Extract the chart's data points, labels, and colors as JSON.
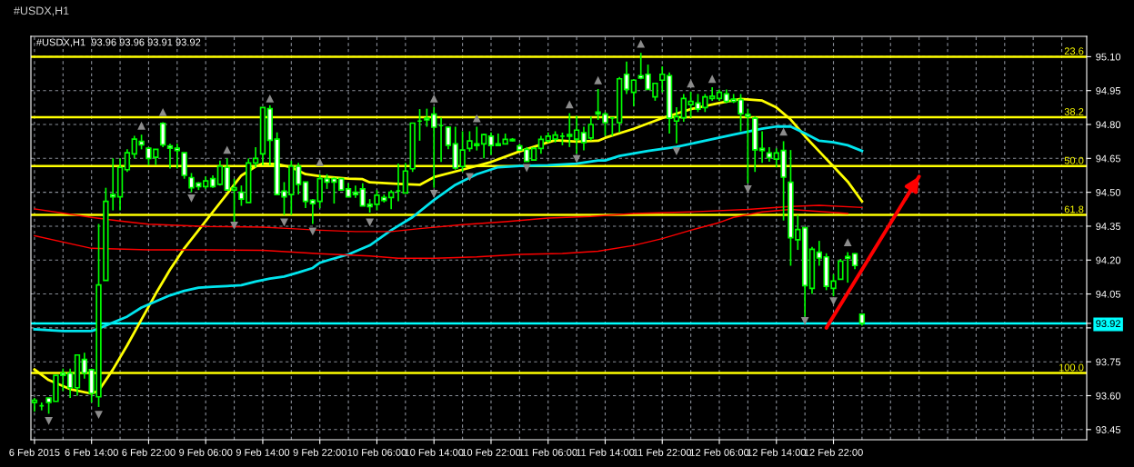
{
  "chart_data": {
    "type": "candlestick",
    "title": "#USDX,H1",
    "subtitle": "#USDX,H1  93.96 93.96 93.91 93.92",
    "categories": [
      "6 Feb 2015",
      null,
      null,
      null,
      null,
      null,
      null,
      null,
      "6 Feb 14:00",
      null,
      null,
      null,
      null,
      null,
      null,
      null,
      "6 Feb 22:00",
      null,
      null,
      null,
      null,
      null,
      null,
      null,
      "9 Feb 06:00",
      null,
      null,
      null,
      null,
      null,
      null,
      null,
      "9 Feb 14:00",
      null,
      null,
      null,
      null,
      null,
      null,
      null,
      "9 Feb 22:00",
      null,
      null,
      null,
      null,
      null,
      null,
      null,
      "10 Feb 06:00",
      null,
      null,
      null,
      null,
      null,
      null,
      null,
      "10 Feb 14:00",
      null,
      null,
      null,
      null,
      null,
      null,
      null,
      "10 Feb 22:00",
      null,
      null,
      null,
      null,
      null,
      null,
      null,
      "11 Feb 06:00",
      null,
      null,
      null,
      null,
      null,
      null,
      null,
      "11 Feb 14:00",
      null,
      null,
      null,
      null,
      null,
      null,
      null,
      "11 Feb 22:00",
      null,
      null,
      null,
      null,
      null,
      null,
      null,
      "12 Feb 06:00",
      null,
      null,
      null,
      null,
      null,
      null,
      null,
      "12 Feb 14:00",
      null,
      null,
      null,
      null,
      null,
      null,
      null,
      "12 Feb 22:00",
      null,
      null,
      null,
      null,
      null,
      null,
      null,
      null,
      null,
      null,
      null,
      null,
      null,
      null,
      null,
      null,
      null,
      null,
      null,
      null,
      null,
      null,
      null,
      null,
      null,
      null,
      null,
      null,
      null,
      null,
      null,
      null,
      null,
      null,
      null
    ],
    "color": "#00ff00",
    "ohlc": [
      [
        93.57,
        93.59,
        93.53,
        93.58
      ],
      [
        93.555,
        93.57,
        93.535,
        93.555
      ],
      [
        93.59,
        93.59,
        93.52,
        93.57
      ],
      [
        93.575,
        93.69,
        93.575,
        93.69
      ],
      [
        93.7,
        93.72,
        93.62,
        93.69
      ],
      [
        93.7,
        93.72,
        93.59,
        93.635
      ],
      [
        93.635,
        93.78,
        93.6,
        93.78
      ],
      [
        93.76,
        93.79,
        93.675,
        93.7
      ],
      [
        93.715,
        93.72,
        93.57,
        93.61
      ],
      [
        93.595,
        94.36,
        93.55,
        94.09
      ],
      [
        94.11,
        94.52,
        94.11,
        94.46
      ],
      [
        94.49,
        94.65,
        94.42,
        94.48
      ],
      [
        94.48,
        94.65,
        94.42,
        94.61
      ],
      [
        94.6,
        94.69,
        94.59,
        94.675
      ],
      [
        94.67,
        94.75,
        94.65,
        94.735
      ],
      [
        94.725,
        94.755,
        94.69,
        94.71
      ],
      [
        94.695,
        94.7,
        94.62,
        94.65
      ],
      [
        94.655,
        94.69,
        94.62,
        94.69
      ],
      [
        94.805,
        94.81,
        94.7,
        94.71
      ],
      [
        94.705,
        94.715,
        94.605,
        94.695
      ],
      [
        94.695,
        94.715,
        94.605,
        94.685
      ],
      [
        94.675,
        94.675,
        94.56,
        94.575
      ],
      [
        94.565,
        94.585,
        94.5,
        94.52
      ],
      [
        94.54,
        94.545,
        94.51,
        94.525
      ],
      [
        94.525,
        94.57,
        94.515,
        94.55
      ],
      [
        94.56,
        94.575,
        94.52,
        94.525
      ],
      [
        94.535,
        94.64,
        94.53,
        94.615
      ],
      [
        94.61,
        94.65,
        94.51,
        94.51
      ],
      [
        94.51,
        94.56,
        94.37,
        94.52
      ],
      [
        94.5,
        94.53,
        94.44,
        94.47
      ],
      [
        94.455,
        94.65,
        94.455,
        94.63
      ],
      [
        94.63,
        94.7,
        94.61,
        94.65
      ],
      [
        94.67,
        94.875,
        94.62,
        94.875
      ],
      [
        94.87,
        94.885,
        94.62,
        94.73
      ],
      [
        94.735,
        94.765,
        94.49,
        94.49
      ],
      [
        94.505,
        94.545,
        94.4,
        94.48
      ],
      [
        94.49,
        94.64,
        94.4,
        94.615
      ],
      [
        94.615,
        94.63,
        94.49,
        94.535
      ],
      [
        94.545,
        94.545,
        94.43,
        94.46
      ],
      [
        94.465,
        94.47,
        94.36,
        94.45
      ],
      [
        94.46,
        94.58,
        94.43,
        94.56
      ],
      [
        94.56,
        94.58,
        94.515,
        94.545
      ],
      [
        94.56,
        94.565,
        94.45,
        94.545
      ],
      [
        94.56,
        94.56,
        94.51,
        94.51
      ],
      [
        94.515,
        94.54,
        94.48,
        94.48
      ],
      [
        94.5,
        94.53,
        94.475,
        94.49
      ],
      [
        94.515,
        94.54,
        94.44,
        94.44
      ],
      [
        94.447,
        94.47,
        94.41,
        94.437
      ],
      [
        94.447,
        94.51,
        94.42,
        94.487
      ],
      [
        94.477,
        94.49,
        94.455,
        94.464
      ],
      [
        94.477,
        94.51,
        94.425,
        94.5
      ],
      [
        94.506,
        94.627,
        94.46,
        94.506
      ],
      [
        94.497,
        94.63,
        94.497,
        94.594
      ],
      [
        94.604,
        94.806,
        94.59,
        94.806
      ],
      [
        94.815,
        94.868,
        94.728,
        94.815
      ],
      [
        94.828,
        94.87,
        94.79,
        94.82
      ],
      [
        94.846,
        94.878,
        94.52,
        94.788
      ],
      [
        94.795,
        94.83,
        94.634,
        94.795
      ],
      [
        94.788,
        94.79,
        94.69,
        94.708
      ],
      [
        94.714,
        94.79,
        94.6,
        94.607
      ],
      [
        94.614,
        94.77,
        94.59,
        94.687
      ],
      [
        94.694,
        94.77,
        94.68,
        94.727
      ],
      [
        94.714,
        94.79,
        94.685,
        94.707
      ],
      [
        94.714,
        94.76,
        94.65,
        94.755
      ],
      [
        94.748,
        94.765,
        94.665,
        94.707
      ],
      [
        94.714,
        94.76,
        94.707,
        94.707
      ],
      [
        94.714,
        94.76,
        94.714,
        94.734
      ],
      [
        94.734,
        94.74,
        94.725,
        94.728
      ],
      [
        94.705,
        94.715,
        94.687,
        94.687
      ],
      [
        94.69,
        94.7,
        94.637,
        94.637
      ],
      [
        94.643,
        94.7,
        94.643,
        94.694
      ],
      [
        94.694,
        94.75,
        94.67,
        94.734
      ],
      [
        94.728,
        94.765,
        94.72,
        94.748
      ],
      [
        94.735,
        94.77,
        94.72,
        94.753
      ],
      [
        94.748,
        94.764,
        94.708,
        94.748
      ],
      [
        94.755,
        94.85,
        94.7,
        94.748
      ],
      [
        94.735,
        94.838,
        94.67,
        94.775
      ],
      [
        94.764,
        94.79,
        94.685,
        94.72
      ],
      [
        94.74,
        94.835,
        94.73,
        94.8
      ],
      [
        94.855,
        94.957,
        94.82,
        94.847
      ],
      [
        94.846,
        94.855,
        94.75,
        94.808
      ],
      [
        94.83,
        94.83,
        94.75,
        94.83
      ],
      [
        94.808,
        95.01,
        94.765,
        95.002
      ],
      [
        95.022,
        95.078,
        94.935,
        94.955
      ],
      [
        94.942,
        95.0,
        94.88,
        94.996
      ],
      [
        95.016,
        95.117,
        95.0,
        95.005
      ],
      [
        95.022,
        95.065,
        94.955,
        94.955
      ],
      [
        94.922,
        94.985,
        94.905,
        94.982
      ],
      [
        94.996,
        95.057,
        94.942,
        95.022
      ],
      [
        95.016,
        95.03,
        94.76,
        94.828
      ],
      [
        94.815,
        94.876,
        94.717,
        94.835
      ],
      [
        94.83,
        94.935,
        94.812,
        94.915
      ],
      [
        94.888,
        94.945,
        94.83,
        94.902
      ],
      [
        94.895,
        94.935,
        94.855,
        94.868
      ],
      [
        94.875,
        94.935,
        94.855,
        94.922
      ],
      [
        94.915,
        94.965,
        94.905,
        94.925
      ],
      [
        94.915,
        94.955,
        94.905,
        94.942
      ],
      [
        94.935,
        94.955,
        94.895,
        94.902
      ],
      [
        94.912,
        94.935,
        94.895,
        94.902
      ],
      [
        94.91,
        94.935,
        94.77,
        94.848
      ],
      [
        94.845,
        94.87,
        94.54,
        94.835
      ],
      [
        94.828,
        94.835,
        94.59,
        94.688
      ],
      [
        94.694,
        94.77,
        94.63,
        94.685
      ],
      [
        94.674,
        94.7,
        94.635,
        94.654
      ],
      [
        94.647,
        94.694,
        94.61,
        94.674
      ],
      [
        94.685,
        94.726,
        94.375,
        94.567
      ],
      [
        94.544,
        94.687,
        94.175,
        94.299
      ],
      [
        94.29,
        94.4,
        94.245,
        94.335
      ],
      [
        94.343,
        94.343,
        93.95,
        94.087
      ],
      [
        94.075,
        94.258,
        94.05,
        94.248
      ],
      [
        94.235,
        94.285,
        94.175,
        94.209
      ],
      [
        94.214,
        94.23,
        94.067,
        94.084
      ],
      [
        94.075,
        94.138,
        94.04,
        94.107
      ],
      [
        94.115,
        94.205,
        94.115,
        94.195
      ],
      [
        94.216,
        94.235,
        94.1,
        94.208
      ],
      [
        94.228,
        94.23,
        94.16,
        94.176
      ],
      [
        93.96,
        93.96,
        93.91,
        93.92
      ],
      null,
      null,
      null,
      null,
      null,
      null,
      null,
      null,
      null,
      null,
      null,
      null,
      null,
      null,
      null,
      null,
      null,
      null,
      null,
      null,
      null,
      null,
      null,
      null,
      null,
      null,
      null,
      null,
      null,
      null,
      null
    ],
    "series": [
      {
        "type": "line",
        "color": "#ffff00",
        "values": [
          93.716,
          null,
          93.669,
          null,
          null,
          93.629,
          null,
          null,
          93.609,
          93.622,
          null,
          93.716,
          null,
          93.823,
          null,
          93.937,
          null,
          94.051,
          null,
          94.158,
          null,
          94.252,
          null,
          94.332,
          null,
          94.413,
          null,
          94.493,
          null,
          94.574,
          null,
          94.614,
          94.627,
          null,
          94.625,
          null,
          94.611,
          null,
          94.58,
          null,
          94.571,
          null,
          null,
          null,
          94.56,
          null,
          94.558,
          94.544,
          null,
          null,
          null,
          94.537,
          null,
          null,
          94.533,
          null,
          94.567,
          null,
          null,
          null,
          94.6,
          null,
          null,
          null,
          94.634,
          null,
          null,
          null,
          94.681,
          null,
          null,
          null,
          94.721,
          94.73,
          null,
          null,
          94.724,
          null,
          null,
          94.728,
          94.741,
          null,
          null,
          null,
          94.781,
          null,
          null,
          null,
          94.828,
          null,
          null,
          null,
          94.868,
          null,
          null,
          null,
          94.895,
          null,
          null,
          94.913,
          null,
          null,
          94.906,
          null,
          94.875,
          null,
          94.822,
          null,
          94.748,
          null,
          94.681,
          null,
          94.614,
          null,
          94.547,
          null,
          94.46,
          null,
          null,
          null,
          null,
          null,
          null,
          null,
          null,
          null,
          null,
          null,
          null,
          null,
          null,
          null,
          null,
          null,
          null,
          null,
          null,
          null,
          null,
          null,
          null,
          null,
          null,
          null,
          null,
          null,
          null,
          null
        ]
      },
      {
        "type": "line",
        "color": "#00e5ee",
        "values": [
          93.894,
          null,
          null,
          null,
          93.886,
          null,
          null,
          null,
          93.886,
          93.897,
          null,
          93.924,
          null,
          93.95,
          null,
          93.99,
          null,
          94.017,
          null,
          94.044,
          null,
          94.064,
          null,
          94.078,
          null,
          94.082,
          null,
          94.085,
          null,
          94.089,
          null,
          94.105,
          null,
          94.118,
          null,
          94.127,
          null,
          94.145,
          null,
          94.165,
          94.188,
          94.198,
          null,
          null,
          94.225,
          null,
          null,
          94.265,
          null,
          null,
          94.332,
          null,
          null,
          94.39,
          null,
          null,
          94.466,
          null,
          null,
          94.533,
          null,
          null,
          94.58,
          null,
          null,
          94.611,
          null,
          null,
          94.617,
          null,
          null,
          null,
          94.62,
          null,
          null,
          null,
          94.627,
          null,
          null,
          94.641,
          94.641,
          null,
          94.661,
          null,
          null,
          null,
          94.683,
          null,
          null,
          null,
          94.701,
          null,
          null,
          null,
          94.728,
          null,
          null,
          null,
          94.755,
          null,
          null,
          null,
          94.781,
          null,
          94.791,
          null,
          94.791,
          null,
          94.761,
          null,
          94.728,
          null,
          94.721,
          null,
          94.708,
          null,
          94.683,
          null,
          null,
          null,
          null,
          null,
          null,
          null,
          null,
          null,
          null,
          null,
          null,
          null,
          null,
          null,
          null,
          null,
          null,
          null,
          null,
          null,
          null,
          null,
          null,
          null,
          null,
          null,
          null,
          null,
          null,
          null
        ]
      },
      {
        "type": "line",
        "color": "#ff0000",
        "values": [
          94.426,
          null,
          null,
          null,
          null,
          null,
          null,
          null,
          94.389,
          null,
          null,
          null,
          94.373,
          null,
          null,
          null,
          94.359,
          null,
          null,
          null,
          null,
          null,
          null,
          null,
          94.349,
          null,
          null,
          null,
          null,
          null,
          null,
          null,
          94.346,
          null,
          null,
          null,
          94.339,
          null,
          null,
          null,
          94.332,
          null,
          null,
          null,
          null,
          94.326,
          null,
          null,
          null,
          null,
          94.326,
          null,
          null,
          null,
          94.339,
          null,
          null,
          null,
          null,
          null,
          94.357,
          null,
          null,
          null,
          null,
          null,
          94.37,
          null,
          null,
          null,
          null,
          null,
          94.386,
          null,
          null,
          null,
          null,
          null,
          94.393,
          null,
          null,
          null,
          null,
          null,
          94.406,
          null,
          null,
          null,
          null,
          null,
          null,
          null,
          94.413,
          null,
          null,
          null,
          null,
          null,
          null,
          null,
          94.424,
          null,
          null,
          null,
          null,
          null,
          94.437,
          null,
          null,
          null,
          94.442,
          null,
          null,
          null,
          null,
          null,
          94.433,
          null,
          null,
          null,
          null,
          null,
          null,
          null,
          null,
          null,
          null,
          null,
          null,
          null,
          null,
          null,
          null,
          null,
          null,
          null,
          null,
          null,
          null,
          null,
          null,
          null,
          null,
          null,
          null,
          null,
          null,
          null
        ]
      },
      {
        "type": "line",
        "color": "#ff0000",
        "values": [
          94.308,
          null,
          null,
          null,
          null,
          null,
          null,
          null,
          94.252,
          null,
          null,
          null,
          null,
          null,
          null,
          null,
          94.245,
          null,
          null,
          null,
          null,
          null,
          null,
          null,
          94.245,
          null,
          null,
          null,
          null,
          null,
          null,
          null,
          94.243,
          null,
          null,
          null,
          null,
          null,
          null,
          null,
          94.228,
          null,
          null,
          null,
          null,
          null,
          null,
          94.218,
          null,
          null,
          null,
          94.208,
          null,
          null,
          null,
          null,
          94.208,
          null,
          null,
          null,
          null,
          null,
          94.214,
          null,
          null,
          null,
          null,
          null,
          94.225,
          null,
          null,
          null,
          null,
          null,
          94.229,
          null,
          null,
          null,
          null,
          94.239,
          null,
          null,
          null,
          null,
          94.265,
          null,
          null,
          null,
          94.295,
          null,
          null,
          null,
          94.332,
          null,
          null,
          null,
          94.366,
          null,
          94.389,
          null,
          null,
          null,
          94.413,
          null,
          null,
          null,
          94.424,
          null,
          null,
          null,
          94.415,
          null,
          null,
          null,
          94.406,
          null,
          null,
          null,
          null,
          null,
          null,
          null,
          null,
          null,
          null,
          null,
          null,
          null,
          null,
          null,
          null,
          null,
          null,
          null,
          null,
          null,
          null,
          null,
          null,
          null,
          null,
          null,
          null,
          null,
          null,
          null,
          null,
          null
        ]
      },
      {
        "type": "scatter",
        "color": "#8c8c8c",
        "marker": "triangle",
        "values": [
          null,
          null,
          null,
          null,
          null,
          null,
          null,
          null,
          null,
          null,
          null,
          null,
          null,
          null,
          null,
          94.795,
          null,
          null,
          94.855,
          null,
          null,
          null,
          null,
          null,
          null,
          null,
          null,
          94.688,
          null,
          null,
          null,
          null,
          null,
          94.915,
          null,
          null,
          null,
          null,
          null,
          null,
          94.634,
          null,
          null,
          null,
          null,
          null,
          null,
          null,
          null,
          null,
          null,
          null,
          null,
          null,
          null,
          null,
          94.915,
          null,
          null,
          null,
          null,
          null,
          94.828,
          null,
          null,
          null,
          null,
          null,
          null,
          null,
          null,
          null,
          null,
          null,
          null,
          94.889,
          null,
          null,
          null,
          94.996,
          null,
          null,
          null,
          null,
          null,
          95.157,
          null,
          null,
          null,
          null,
          null,
          null,
          94.982,
          null,
          null,
          95.002,
          null,
          null,
          null,
          null,
          null,
          null,
          null,
          null,
          null,
          94.768,
          null,
          null,
          null,
          null,
          null,
          null,
          null,
          null,
          94.279,
          null,
          null,
          null,
          null,
          null,
          null,
          null,
          null,
          null,
          null,
          null,
          null,
          null,
          null,
          null,
          null,
          null,
          null,
          null,
          null,
          null,
          null,
          null,
          null,
          null,
          null,
          null,
          null,
          null,
          null,
          null,
          null,
          null
        ]
      },
      {
        "type": "scatter",
        "color": "#8c8c8c",
        "marker": "triangle_down",
        "values": [
          null,
          null,
          93.488,
          null,
          null,
          null,
          null,
          null,
          null,
          93.515,
          null,
          null,
          null,
          null,
          null,
          null,
          null,
          null,
          null,
          null,
          null,
          null,
          94.473,
          null,
          null,
          null,
          null,
          null,
          94.352,
          null,
          null,
          null,
          null,
          null,
          null,
          94.366,
          null,
          null,
          null,
          94.326,
          null,
          null,
          null,
          null,
          null,
          null,
          null,
          94.366,
          null,
          null,
          null,
          null,
          null,
          null,
          null,
          null,
          94.493,
          null,
          null,
          null,
          null,
          94.567,
          null,
          null,
          null,
          null,
          null,
          null,
          null,
          94.607,
          null,
          null,
          null,
          null,
          null,
          null,
          94.647,
          null,
          null,
          null,
          null,
          null,
          null,
          null,
          null,
          null,
          null,
          null,
          null,
          null,
          94.681,
          null,
          null,
          null,
          null,
          null,
          null,
          null,
          null,
          null,
          94.513,
          null,
          null,
          null,
          null,
          null,
          null,
          null,
          93.93,
          null,
          null,
          null,
          94.018,
          null,
          null,
          null,
          null,
          null,
          null,
          null,
          null,
          null,
          null,
          null,
          null,
          null,
          null,
          null,
          null,
          null,
          null,
          null,
          null,
          null,
          null,
          null,
          null,
          null,
          null,
          null,
          null,
          null,
          null,
          null,
          null,
          null,
          null,
          null
        ]
      },
      {
        "type": "line",
        "color": "#ff0000",
        "line_style": "solid",
        "values": [
          null,
          null,
          null,
          null,
          null,
          null,
          null,
          null,
          null,
          null,
          null,
          null,
          null,
          null,
          null,
          null,
          null,
          null,
          null,
          null,
          null,
          null,
          null,
          null,
          null,
          null,
          null,
          null,
          null,
          null,
          null,
          null,
          null,
          null,
          null,
          null,
          null,
          null,
          null,
          null,
          null,
          null,
          null,
          null,
          null,
          null,
          null,
          null,
          null,
          null,
          null,
          null,
          null,
          null,
          null,
          null,
          null,
          null,
          null,
          null,
          null,
          null,
          null,
          null,
          null,
          null,
          null,
          null,
          null,
          null,
          null,
          null,
          null,
          null,
          null,
          null,
          null,
          null,
          null,
          null,
          null,
          null,
          null,
          null,
          null,
          null,
          null,
          null,
          null,
          null,
          null,
          null,
          null,
          null,
          null,
          null,
          null,
          null,
          null,
          null,
          null,
          null,
          null,
          null,
          null,
          null,
          null,
          null,
          null,
          null,
          null,
          93.9,
          null,
          null,
          null,
          null,
          null,
          null,
          null,
          null,
          null,
          null,
          null,
          null,
          94.57,
          null,
          null,
          null,
          null,
          null,
          null,
          null,
          null,
          null,
          null,
          null,
          null,
          null,
          null,
          null,
          null,
          null,
          null,
          null,
          null,
          null,
          null,
          null
        ]
      }
    ],
    "ref_lines": [
      {
        "axis": "y",
        "value": 95.1,
        "color": "#ffff00"
      },
      {
        "axis": "y",
        "value": 94.832,
        "color": "#ffff00"
      },
      {
        "axis": "y",
        "value": 94.616,
        "color": "#ffff00"
      },
      {
        "axis": "y",
        "value": 94.4,
        "color": "#ffff00"
      },
      {
        "axis": "y",
        "value": 93.7,
        "color": "#ffff00"
      },
      {
        "axis": "y",
        "value": 93.92,
        "color": "#00ffff"
      }
    ],
    "annotations": [
      {
        "text": "23.6",
        "y": 95.1
      },
      {
        "text": "38.2",
        "y": 94.832
      },
      {
        "text": "50.0",
        "y": 94.616
      },
      {
        "text": "61.8",
        "y": 94.4
      },
      {
        "text": "100.0",
        "y": 93.7
      }
    ],
    "ylim": [
      93.405,
      95.19
    ],
    "yticks": [
      93.45,
      {
        "value": 93.6,
        "label": "93.60"
      },
      93.75,
      {
        "value": 93.9,
        "label": null
      },
      {
        "value": 93.92,
        "label": "93.92"
      },
      94.05,
      {
        "value": 94.2,
        "label": "94.20"
      },
      94.35,
      {
        "value": 94.5,
        "label": "94.50"
      },
      94.65,
      {
        "value": 94.8,
        "label": "94.80"
      },
      94.95,
      {
        "value": 95.1,
        "label": "95.10"
      }
    ],
    "grid": true
  }
}
